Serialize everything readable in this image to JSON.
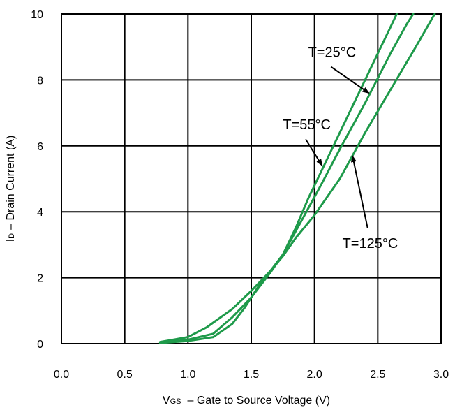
{
  "chart_data": {
    "type": "line",
    "xlabel_main": "V",
    "xlabel_sub": "GS",
    "xlabel_rest": "– Gate to Source Voltage (V)",
    "ylabel_main": "I",
    "ylabel_sub": "D",
    "ylabel_rest": "– Drain Current (A)",
    "xlim": [
      0.0,
      3.0
    ],
    "ylim": [
      0,
      10
    ],
    "x_ticks": [
      "0.0",
      "0.5",
      "1.0",
      "1.5",
      "2.0",
      "2.5",
      "3.0"
    ],
    "y_ticks": [
      "0",
      "2",
      "4",
      "6",
      "8",
      "10"
    ],
    "grid": true,
    "line_color": "#1e9a4a",
    "series": [
      {
        "name": "T=25°C",
        "points": [
          [
            0.78,
            0.02
          ],
          [
            1.0,
            0.08
          ],
          [
            1.2,
            0.2
          ],
          [
            1.35,
            0.6
          ],
          [
            1.45,
            1.1
          ],
          [
            1.55,
            1.7
          ],
          [
            1.65,
            2.2
          ],
          [
            1.75,
            2.7
          ],
          [
            1.85,
            3.5
          ],
          [
            1.95,
            4.4
          ],
          [
            2.05,
            5.2
          ],
          [
            2.2,
            6.4
          ],
          [
            2.35,
            7.6
          ],
          [
            2.5,
            8.8
          ],
          [
            2.6,
            9.6
          ],
          [
            2.65,
            10.0
          ]
        ]
      },
      {
        "name": "T=55°C",
        "points": [
          [
            0.78,
            0.03
          ],
          [
            1.0,
            0.12
          ],
          [
            1.2,
            0.3
          ],
          [
            1.35,
            0.8
          ],
          [
            1.5,
            1.4
          ],
          [
            1.65,
            2.15
          ],
          [
            1.75,
            2.7
          ],
          [
            1.85,
            3.4
          ],
          [
            1.95,
            4.1
          ],
          [
            2.05,
            4.8
          ],
          [
            2.2,
            5.9
          ],
          [
            2.4,
            7.3
          ],
          [
            2.6,
            8.8
          ],
          [
            2.73,
            9.7
          ],
          [
            2.78,
            10.0
          ]
        ]
      },
      {
        "name": "T=125°C",
        "points": [
          [
            0.78,
            0.05
          ],
          [
            1.0,
            0.2
          ],
          [
            1.15,
            0.5
          ],
          [
            1.35,
            1.05
          ],
          [
            1.5,
            1.6
          ],
          [
            1.65,
            2.2
          ],
          [
            1.75,
            2.65
          ],
          [
            1.85,
            3.2
          ],
          [
            2.0,
            3.9
          ],
          [
            2.2,
            5.0
          ],
          [
            2.4,
            6.4
          ],
          [
            2.6,
            7.7
          ],
          [
            2.8,
            9.0
          ],
          [
            2.95,
            10.0
          ]
        ]
      }
    ],
    "annotations": [
      {
        "text": "T=25°C",
        "x": 1.95,
        "y": 8.7,
        "arrow_from": [
          2.13,
          8.4
        ],
        "arrow_to": [
          2.43,
          7.6
        ]
      },
      {
        "text": "T=55°C",
        "x": 1.75,
        "y": 6.5,
        "arrow_from": [
          1.93,
          6.2
        ],
        "arrow_to": [
          2.06,
          5.4
        ]
      },
      {
        "text": "T=125°C",
        "x": 2.22,
        "y": 2.9,
        "arrow_from": [
          2.42,
          3.5
        ],
        "arrow_to": [
          2.3,
          5.7
        ]
      }
    ]
  }
}
